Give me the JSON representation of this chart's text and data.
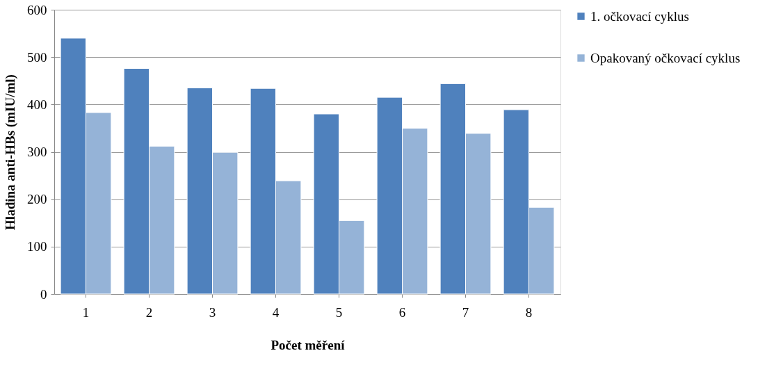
{
  "chart_data": {
    "type": "bar",
    "xlabel": "Počet měření",
    "ylabel": "Hladina anti-HBs  (mIU/ml)",
    "categories": [
      "1",
      "2",
      "3",
      "4",
      "5",
      "6",
      "7",
      "8"
    ],
    "series": [
      {
        "name": "1. očkovací cyklus",
        "color": "#4f81bd",
        "values": [
          540,
          476,
          435,
          434,
          380,
          415,
          444,
          389
        ]
      },
      {
        "name": "Opakovaný očkovací cyklus",
        "color": "#95b3d7",
        "values": [
          383,
          312,
          299,
          239,
          155,
          350,
          339,
          183
        ]
      }
    ],
    "ylim": [
      0,
      600
    ],
    "yticks": [
      0,
      100,
      200,
      300,
      400,
      500,
      600
    ],
    "grid": "y",
    "legend": "right"
  }
}
